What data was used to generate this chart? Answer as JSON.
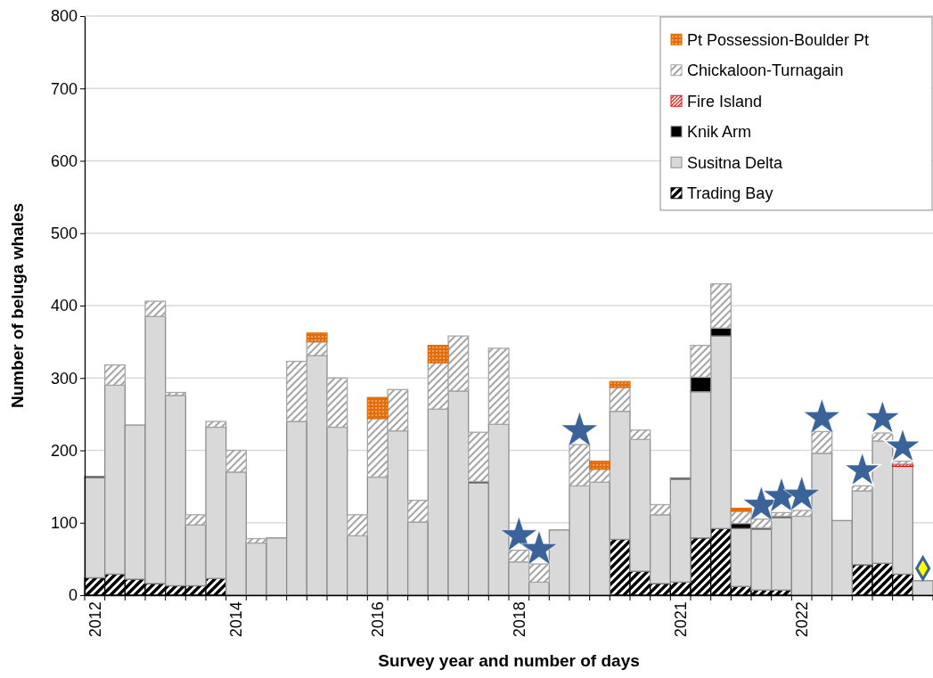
{
  "chart_data": {
    "type": "bar",
    "stacked": true,
    "xlabel": "Survey year and number of days",
    "ylabel": "Number of beluga whales",
    "categories": [
      "2012",
      null,
      null,
      null,
      null,
      null,
      null,
      "2014",
      null,
      null,
      null,
      null,
      null,
      null,
      "2016",
      null,
      null,
      null,
      null,
      null,
      null,
      "2018",
      null,
      null,
      null,
      null,
      null,
      null,
      null,
      "2021",
      null,
      null,
      null,
      null,
      null,
      "2022",
      null,
      null,
      null,
      null,
      null,
      null
    ],
    "ylim": [
      0,
      800
    ],
    "yticks": [
      0,
      100,
      200,
      300,
      400,
      500,
      600,
      700,
      800
    ],
    "grid": "y",
    "legend": "top right",
    "series": [
      {
        "name": "Trading Bay",
        "color": "#000000",
        "values": [
          24,
          29,
          22,
          16,
          13,
          13,
          23,
          null,
          null,
          null,
          null,
          null,
          null,
          null,
          null,
          null,
          null,
          null,
          null,
          null,
          null,
          null,
          null,
          null,
          null,
          null,
          77,
          33,
          16,
          18,
          79,
          92,
          12,
          7,
          7,
          null,
          null,
          null,
          42,
          44,
          29,
          null
        ]
      },
      {
        "name": "Susitna Delta",
        "color": "#d9d9d9",
        "values": [
          138,
          261,
          213,
          369,
          263,
          84,
          209,
          170,
          72,
          79,
          240,
          331,
          232,
          82,
          163,
          227,
          101,
          257,
          282,
          155,
          236,
          46,
          18,
          90,
          151,
          156,
          177,
          182,
          95,
          142,
          202,
          266,
          80,
          84,
          100,
          109,
          196,
          103,
          102,
          169,
          149,
          20
        ]
      },
      {
        "name": "Knik Arm",
        "color": "#000000",
        "values": [
          2,
          null,
          null,
          null,
          null,
          null,
          null,
          null,
          null,
          null,
          null,
          null,
          null,
          null,
          null,
          null,
          null,
          null,
          null,
          2,
          null,
          null,
          null,
          null,
          null,
          null,
          null,
          null,
          null,
          2,
          20,
          11,
          7,
          2,
          2,
          null,
          null,
          null,
          null,
          null,
          null,
          null
        ]
      },
      {
        "name": "Fire Island",
        "color": "#ff0000",
        "values": [
          null,
          null,
          null,
          null,
          null,
          null,
          null,
          null,
          null,
          null,
          null,
          null,
          null,
          null,
          null,
          null,
          null,
          null,
          null,
          null,
          null,
          null,
          null,
          null,
          null,
          null,
          null,
          null,
          null,
          null,
          null,
          null,
          null,
          null,
          null,
          null,
          null,
          null,
          null,
          null,
          3,
          null
        ]
      },
      {
        "name": "Chickaloon-Turnagain",
        "color": "#a6a6a6",
        "values": [
          null,
          28,
          null,
          21,
          4,
          14,
          8,
          30,
          6,
          null,
          83,
          19,
          68,
          29,
          81,
          57,
          30,
          64,
          76,
          68,
          105,
          16,
          25,
          null,
          57,
          18,
          33,
          13,
          14,
          null,
          44,
          61,
          17,
          12,
          5,
          8,
          30,
          null,
          7,
          11,
          4,
          null
        ]
      },
      {
        "name": "Pt Possession-Boulder Pt",
        "color": "#e46c0a",
        "values": [
          null,
          null,
          null,
          null,
          null,
          null,
          null,
          null,
          null,
          null,
          null,
          12,
          null,
          null,
          29,
          null,
          null,
          24,
          null,
          null,
          null,
          null,
          null,
          null,
          null,
          11,
          8,
          null,
          null,
          null,
          null,
          null,
          4,
          null,
          null,
          null,
          null,
          null,
          null,
          null,
          null,
          null
        ]
      },
      {
        "type": "scatter",
        "marker": "star",
        "color": "#3a6499",
        "values": [
          null,
          null,
          null,
          null,
          null,
          null,
          null,
          null,
          null,
          null,
          null,
          null,
          null,
          null,
          null,
          null,
          null,
          null,
          null,
          null,
          null,
          82,
          63,
          null,
          227,
          null,
          null,
          null,
          null,
          null,
          null,
          null,
          null,
          124,
          136,
          138,
          245,
          null,
          null,
          null,
          null,
          null
        ]
      },
      {
        "type": "scatter",
        "marker": "star",
        "color": "#3a6499",
        "values": [
          null,
          null,
          null,
          null,
          null,
          null,
          null,
          null,
          null,
          null,
          null,
          null,
          null,
          null,
          null,
          null,
          null,
          null,
          null,
          null,
          null,
          null,
          null,
          null,
          null,
          null,
          null,
          null,
          null,
          null,
          null,
          null,
          null,
          null,
          null,
          null,
          null,
          null,
          172,
          244,
          205,
          null
        ]
      },
      {
        "type": "scatter",
        "marker": "diamond",
        "color": "#ffff00",
        "values": [
          null,
          null,
          null,
          null,
          null,
          null,
          null,
          null,
          null,
          null,
          null,
          null,
          null,
          null,
          null,
          null,
          null,
          null,
          null,
          null,
          null,
          null,
          null,
          null,
          null,
          null,
          null,
          null,
          null,
          null,
          null,
          null,
          null,
          null,
          null,
          null,
          null,
          null,
          null,
          null,
          null,
          37
        ]
      }
    ]
  }
}
